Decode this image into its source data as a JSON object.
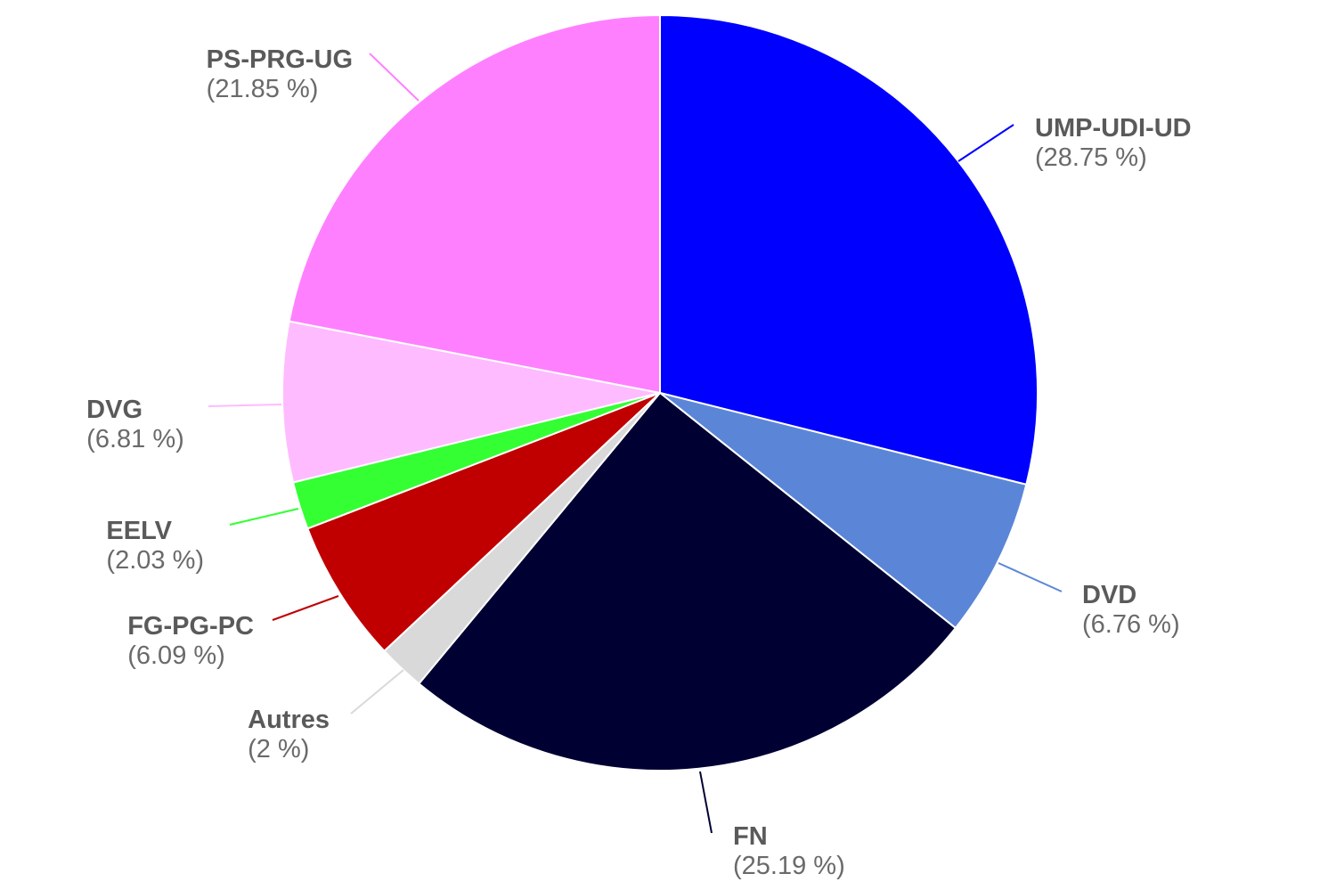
{
  "chart_data": {
    "type": "pie",
    "title": "",
    "start_angle_deg": 0,
    "direction": "clockwise",
    "slices": [
      {
        "name": "UMP-UDI-UD",
        "value": 28.75,
        "value_label": "(28.75 %)",
        "color": "#0000ff"
      },
      {
        "name": "DVD",
        "value": 6.76,
        "value_label": "(6.76 %)",
        "color": "#5b86d8"
      },
      {
        "name": "FN",
        "value": 25.19,
        "value_label": "(25.19 %)",
        "color": "#000033"
      },
      {
        "name": "Autres",
        "value": 2,
        "value_label": "(2 %)",
        "color": "#d9d9d9"
      },
      {
        "name": "FG-PG-PC",
        "value": 6.09,
        "value_label": "(6.09 %)",
        "color": "#c00000"
      },
      {
        "name": "EELV",
        "value": 2.03,
        "value_label": "(2.03 %)",
        "color": "#33ff33"
      },
      {
        "name": "DVG",
        "value": 6.81,
        "value_label": "(6.81 %)",
        "color": "#ffbbff"
      },
      {
        "name": "PS-PRG-UG",
        "value": 21.85,
        "value_label": "(21.85 %)",
        "color": "#ff80ff"
      }
    ]
  }
}
